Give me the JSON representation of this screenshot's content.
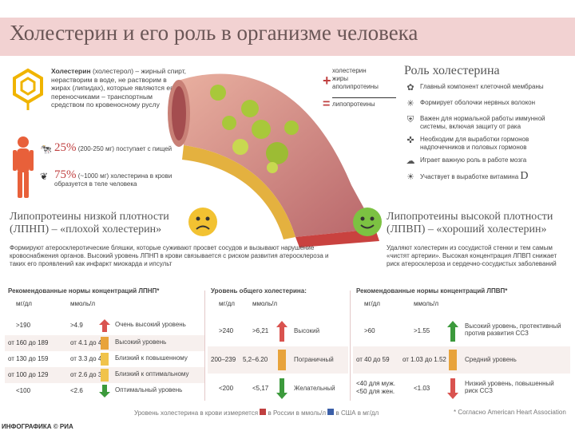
{
  "title": "Холестерин и его роль в организме человека",
  "intro": {
    "bold": "Холестерин",
    "text": " (холестерол) – жирный спирт, нерастворим в воде, не растворим в жирах (липидах), которые являются его переносчиками – транспортным средством по кровеносному руслу"
  },
  "intake": [
    {
      "pct": "25%",
      "text": "(200-250 мг) поступает с пищей"
    },
    {
      "pct": "75%",
      "text": "(~1000 мг) холестерина в крови образуется в теле человека"
    }
  ],
  "formula": {
    "plus_items": [
      "холестерин",
      "жиры",
      "аполипротеины"
    ],
    "result": "липопротеины"
  },
  "roles": {
    "title": "Роль холестерина",
    "items": [
      {
        "icon": "cell-icon",
        "glyph": "✿",
        "text": "Главный компонент клеточной мембраны"
      },
      {
        "icon": "neuron-icon",
        "glyph": "✳",
        "text": "Формирует оболочки нервных волокон"
      },
      {
        "icon": "shield-icon",
        "glyph": "⛨",
        "text": "Важен для нормальной работы иммунной системы, включая защиту от рака"
      },
      {
        "icon": "hormone-icon",
        "glyph": "✜",
        "text": "Необходим для выработки гормонов надпочечников и половых гормонов"
      },
      {
        "icon": "brain-icon",
        "glyph": "☁",
        "text": "Играет важную роль в работе мозга"
      },
      {
        "icon": "vitamin-icon",
        "glyph": "☀",
        "text": "Участвует в выработке витамина",
        "suffix": "D"
      }
    ]
  },
  "ldl": {
    "heading": "Липопротеины низкой плотности (ЛПНП) – «плохой холестерин»",
    "description": "Формируют атеросклеротические бляшки, которые суживают просвет сосудов и вызывают нарушение кровоснабжения органов. Высокий уровень ЛПНП в крови связывается с риском развития атеросклероза и таких его проявлений как инфаркт миокарда и ипсульт"
  },
  "hdl": {
    "heading": "Липопротеины высокой плотности (ЛПВП) – «хороший холестерин»",
    "description": "Удаляют холестерин из сосудистой стенки и тем самым «чистят артерии». Высокая концентрация ЛПВП снижает риск атеросклероза и сердечно-сосудистых заболеваний"
  },
  "table_ldl": {
    "title": "Рекомендованные нормы концентраций ЛПНП*",
    "col1": "мг/дл",
    "col2": "ммоль/л",
    "rows": [
      {
        "mg": ">190",
        "mmol": ">4.9",
        "level": "Очень высокий уровень",
        "color": "#d9534f"
      },
      {
        "mg": "от 160 до 189",
        "mmol": "от 4.1 до 4.9",
        "level": "Высокий уровень",
        "color": "#e8a33b"
      },
      {
        "mg": "от 130 до 159",
        "mmol": "от 3.3 до 4.1",
        "level": "Близкий к повышенному",
        "color": "#f0c34b"
      },
      {
        "mg": "от 100 до 129",
        "mmol": "от 2.6 до 3.3",
        "level": "Близкий к оптимальному",
        "color": "#f0c34b"
      },
      {
        "mg": "<100",
        "mmol": "<2.6",
        "level": "Оптимальный уровень",
        "color": "#3c9a3c"
      }
    ]
  },
  "table_total": {
    "title": "Уровень общего холестерина:",
    "col1": "мг/дл",
    "col2": "ммоль/л",
    "rows": [
      {
        "mg": ">240",
        "mmol": ">6,21",
        "level": "Высокий",
        "color": "#d9534f"
      },
      {
        "mg": "200–239",
        "mmol": "5,2–6.20",
        "level": "Пограничный",
        "color": "#e8a33b"
      },
      {
        "mg": "<200",
        "mmol": "<5,17",
        "level": "Желательный",
        "color": "#3c9a3c"
      }
    ]
  },
  "table_hdl": {
    "title": "Рекомендованные нормы концентраций ЛПВП*",
    "col1": "мг/дл",
    "col2": "ммоль/л",
    "rows": [
      {
        "mg": ">60",
        "mmol": ">1.55",
        "level": "Высокий уровень, протективный против развития ССЗ",
        "color": "#3c9a3c"
      },
      {
        "mg": "от 40 до 59",
        "mmol": "от 1.03 до 1.52",
        "level": "Средний уровень",
        "color": "#e8a33b"
      },
      {
        "mg": "<40 для муж. <50 для жен.",
        "mmol": "<1.03",
        "level": "Низкий уровень, повышенный риск ССЗ",
        "color": "#d9534f"
      }
    ]
  },
  "footer": {
    "note_a": "Уровень холестерина в крови измеряется",
    "note_b": "в России в ммоль/л",
    "note_c": "в США в мг/дл",
    "source": "* Согласно American Heart Association",
    "brand": "ИНФОГРАФИКА © РИА"
  }
}
